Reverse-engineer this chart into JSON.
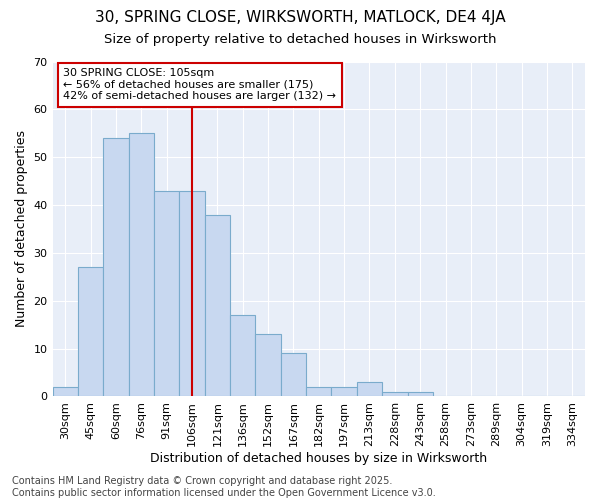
{
  "title1": "30, SPRING CLOSE, WIRKSWORTH, MATLOCK, DE4 4JA",
  "title2": "Size of property relative to detached houses in Wirksworth",
  "xlabel": "Distribution of detached houses by size in Wirksworth",
  "ylabel": "Number of detached properties",
  "categories": [
    "30sqm",
    "45sqm",
    "60sqm",
    "76sqm",
    "91sqm",
    "106sqm",
    "121sqm",
    "136sqm",
    "152sqm",
    "167sqm",
    "182sqm",
    "197sqm",
    "213sqm",
    "228sqm",
    "243sqm",
    "258sqm",
    "273sqm",
    "289sqm",
    "304sqm",
    "319sqm",
    "334sqm"
  ],
  "values": [
    2,
    27,
    54,
    55,
    43,
    43,
    38,
    17,
    13,
    9,
    2,
    2,
    3,
    1,
    1,
    0,
    0,
    0,
    0,
    0,
    0
  ],
  "bar_color": "#c8d8f0",
  "bar_edge_color": "#7aabcc",
  "vline_index": 5,
  "vline_color": "#cc0000",
  "annotation_text": "30 SPRING CLOSE: 105sqm\n← 56% of detached houses are smaller (175)\n42% of semi-detached houses are larger (132) →",
  "annotation_box_color": "#cc0000",
  "ylim": [
    0,
    70
  ],
  "yticks": [
    0,
    10,
    20,
    30,
    40,
    50,
    60,
    70
  ],
  "footnote": "Contains HM Land Registry data © Crown copyright and database right 2025.\nContains public sector information licensed under the Open Government Licence v3.0.",
  "bg_color": "#ffffff",
  "plot_bg_color": "#e8eef8",
  "grid_color": "#ffffff",
  "title1_fontsize": 11,
  "title2_fontsize": 9.5,
  "xlabel_fontsize": 9,
  "ylabel_fontsize": 9,
  "footnote_fontsize": 7,
  "tick_fontsize": 8,
  "annot_fontsize": 8
}
